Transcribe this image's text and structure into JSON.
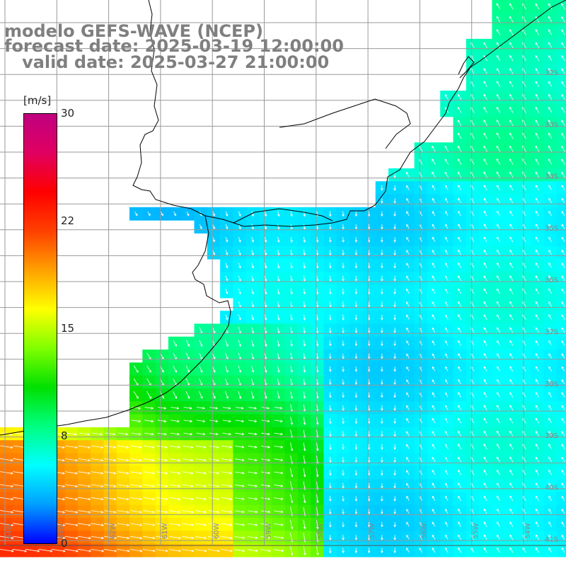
{
  "title": {
    "line1": "modelo GEFS-WAVE (NCEP)",
    "line2": "forecast date: 2025-03-19 12:00:00",
    "line3": "   valid date: 2025-03-27 21:00:00"
  },
  "colorbar": {
    "unit": "[m/s]",
    "ticks": [
      "30",
      "22",
      "15",
      "8",
      "0"
    ],
    "tick_values": [
      30,
      22,
      15,
      8,
      0
    ],
    "colors": [
      "#0000ff",
      "#00a0ff",
      "#00ffff",
      "#00ff80",
      "#00e000",
      "#80ff00",
      "#ffff00",
      "#ffa000",
      "#ff4000",
      "#ff0000",
      "#e00060",
      "#c00080"
    ]
  },
  "map": {
    "lat_labels": [
      "32S",
      "33S",
      "34S",
      "35S",
      "36S",
      "37S",
      "38S",
      "39S",
      "40S",
      "41S"
    ],
    "lon_labels": [
      "64W",
      "63W",
      "62W",
      "61W",
      "60W",
      "59W",
      "58W",
      "57W",
      "56W",
      "55W",
      "54W"
    ],
    "land_color": "#ffffff",
    "grid_color": "#999999",
    "coast_color": "#000000",
    "arrow_color": "#ffffff"
  }
}
